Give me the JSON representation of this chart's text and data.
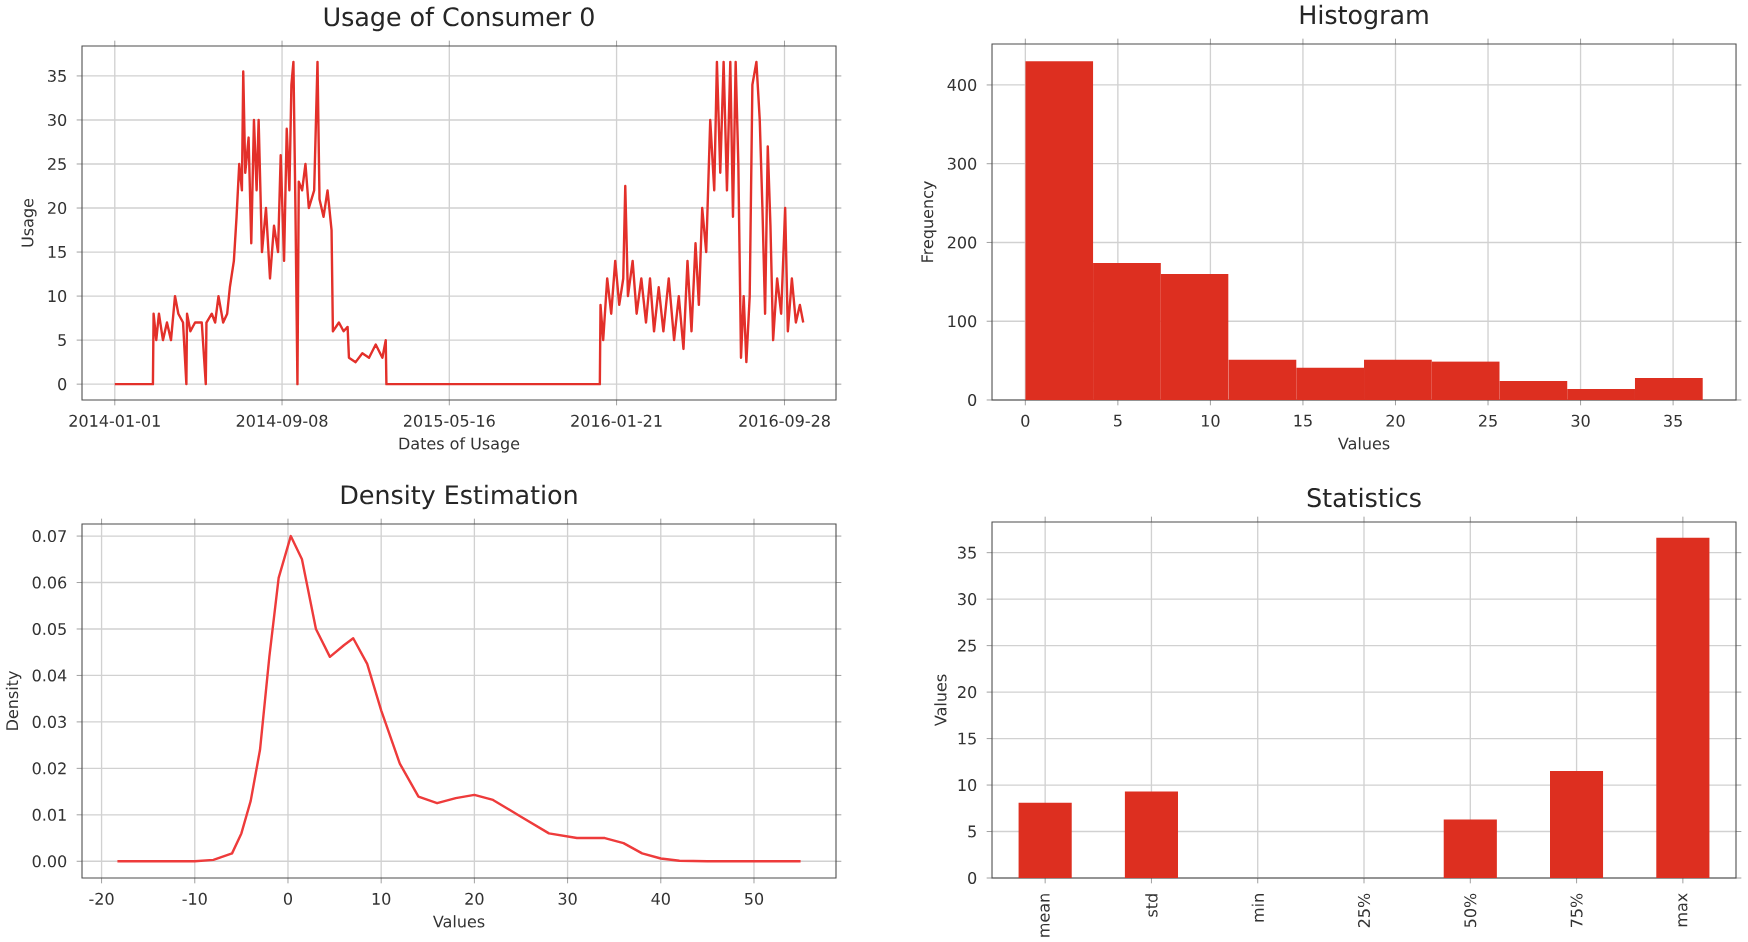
{
  "chart_data": [
    {
      "type": "line",
      "title": "Usage of Consumer 0",
      "xlabel": "Dates of Usage",
      "ylabel": "Usage",
      "color": "#e3302a",
      "grid": true,
      "x": [
        "2014-01-01",
        "2014-02-27",
        "2014-02-28",
        "2014-03-04",
        "2014-03-08",
        "2014-03-14",
        "2014-03-20",
        "2014-03-26",
        "2014-04-01",
        "2014-04-06",
        "2014-04-13",
        "2014-04-18",
        "2014-04-19",
        "2014-04-24",
        "2014-05-01",
        "2014-05-11",
        "2014-05-17",
        "2014-05-18",
        "2014-05-26",
        "2014-05-31",
        "2014-06-05",
        "2014-06-12",
        "2014-06-18",
        "2014-06-22",
        "2014-06-28",
        "2014-07-02",
        "2014-07-06",
        "2014-07-10",
        "2014-07-12",
        "2014-07-15",
        "2014-07-20",
        "2014-07-24",
        "2014-07-28",
        "2014-08-01",
        "2014-08-04",
        "2014-08-09",
        "2014-08-15",
        "2014-08-21",
        "2014-08-27",
        "2014-09-02",
        "2014-09-06",
        "2014-09-11",
        "2014-09-15",
        "2014-09-19",
        "2014-09-22",
        "2014-09-25",
        "2014-09-28",
        "2014-10-01",
        "2014-10-03",
        "2014-10-08",
        "2014-10-13",
        "2014-10-18",
        "2014-10-26",
        "2014-10-31",
        "2014-11-03",
        "2014-11-09",
        "2014-11-15",
        "2014-11-21",
        "2014-11-23",
        "2014-12-02",
        "2014-12-09",
        "2014-12-15",
        "2014-12-17",
        "2014-12-27",
        "2015-01-06",
        "2015-01-16",
        "2015-01-26",
        "2015-02-05",
        "2015-02-10",
        "2015-02-11",
        "2015-12-27",
        "2015-12-28",
        "2016-01-01",
        "2016-01-07",
        "2016-01-13",
        "2016-01-19",
        "2016-01-25",
        "2016-01-31",
        "2016-02-03",
        "2016-02-07",
        "2016-02-14",
        "2016-02-20",
        "2016-02-27",
        "2016-03-05",
        "2016-03-11",
        "2016-03-17",
        "2016-03-24",
        "2016-03-31",
        "2016-04-08",
        "2016-04-16",
        "2016-04-23",
        "2016-04-30",
        "2016-05-06",
        "2016-05-12",
        "2016-05-18",
        "2016-05-23",
        "2016-05-28",
        "2016-06-03",
        "2016-06-09",
        "2016-06-15",
        "2016-06-19",
        "2016-06-24",
        "2016-06-29",
        "2016-07-04",
        "2016-07-09",
        "2016-07-13",
        "2016-07-17",
        "2016-07-21",
        "2016-07-25",
        "2016-07-29",
        "2016-08-02",
        "2016-08-07",
        "2016-08-11",
        "2016-08-17",
        "2016-08-22",
        "2016-08-26",
        "2016-08-30",
        "2016-09-03",
        "2016-09-07",
        "2016-09-11",
        "2016-09-17",
        "2016-09-23",
        "2016-09-29",
        "2016-10-03",
        "2016-10-09",
        "2016-10-15",
        "2016-10-21",
        "2016-10-26"
      ],
      "values": [
        0,
        0,
        8,
        5,
        8,
        5,
        7,
        5,
        10,
        8,
        7,
        0,
        8,
        6,
        7,
        7,
        0,
        7,
        8,
        7,
        10,
        7,
        8,
        11,
        14,
        19,
        25,
        22,
        35.5,
        24,
        28,
        16,
        30,
        22,
        30,
        15,
        20,
        12,
        18,
        15,
        26,
        14,
        29,
        22,
        34,
        36.6,
        20,
        0,
        23,
        22,
        25,
        20,
        22,
        36.6,
        21,
        19,
        22,
        17.5,
        6,
        7,
        6,
        6.5,
        3,
        2.5,
        3.5,
        3,
        4.5,
        3,
        5,
        0,
        0,
        9,
        5,
        12,
        8,
        14,
        9,
        12,
        22.5,
        10,
        14,
        8,
        12,
        7,
        12,
        6,
        11,
        6,
        12,
        5,
        10,
        4,
        14,
        6,
        16,
        9,
        20,
        15,
        30,
        22,
        36.6,
        24,
        36.6,
        22,
        36.6,
        19,
        36.6,
        25,
        3,
        10,
        2.5,
        10,
        34,
        36.6,
        30,
        20,
        8,
        27,
        18,
        5,
        12,
        8,
        20,
        6,
        12,
        7,
        9,
        7
      ],
      "xlim": [
        "2013-11-13",
        "2016-12-14"
      ],
      "xticks": [
        "2014-01-01",
        "2014-09-08",
        "2015-05-16",
        "2016-01-21",
        "2016-09-28"
      ],
      "ylim": [
        -1.8,
        38.4
      ],
      "yticks": [
        0,
        5,
        10,
        15,
        20,
        25,
        30,
        35
      ]
    },
    {
      "type": "histogram",
      "title": "Histogram",
      "xlabel": "Values",
      "ylabel": "Frequency",
      "color": "#dd2f20",
      "grid": true,
      "bins": [
        0,
        3.66,
        7.32,
        10.98,
        14.64,
        18.3,
        21.96,
        25.62,
        29.28,
        32.94,
        36.6
      ],
      "values": [
        430,
        174,
        160,
        51,
        41,
        51,
        49,
        24,
        14,
        28
      ],
      "xlim": [
        -1.8,
        38.4
      ],
      "xticks": [
        0,
        5,
        10,
        15,
        20,
        25,
        30,
        35
      ],
      "ylim": [
        0,
        452
      ],
      "yticks": [
        0,
        100,
        200,
        300,
        400
      ]
    },
    {
      "type": "line",
      "title": "Density Estimation",
      "xlabel": "Values",
      "ylabel": "Density",
      "color": "#ee3b3b",
      "grid": true,
      "x": [
        -18.3,
        -10,
        -8,
        -6,
        -5,
        -4,
        -3,
        -2,
        -1,
        0.3,
        1.5,
        3,
        4.5,
        6,
        7,
        8.5,
        10,
        12,
        14,
        16,
        18,
        20,
        22,
        25,
        28,
        31,
        34,
        36,
        38,
        40,
        42,
        45,
        55
      ],
      "values": [
        0,
        0,
        0.0003,
        0.0017,
        0.006,
        0.013,
        0.024,
        0.044,
        0.061,
        0.07,
        0.065,
        0.05,
        0.044,
        0.0465,
        0.048,
        0.0425,
        0.0325,
        0.021,
        0.0139,
        0.0125,
        0.0136,
        0.0143,
        0.0132,
        0.0096,
        0.006,
        0.005,
        0.005,
        0.0039,
        0.0017,
        0.0006,
        0.0001,
        0,
        0
      ],
      "xlim": [
        -22.1,
        58.8
      ],
      "xticks": [
        -20,
        -10,
        0,
        10,
        20,
        30,
        40,
        50
      ],
      "ylim": [
        -0.0036,
        0.0726
      ],
      "yticks": [
        {
          "value": 0,
          "label": "0.00"
        },
        0.01,
        0.02,
        0.03,
        0.04,
        0.05,
        0.06,
        0.07
      ]
    },
    {
      "type": "bar",
      "title": "Statistics",
      "ylabel": "Values",
      "color": "#dd2f20",
      "grid": true,
      "categories": [
        "mean",
        "std",
        "min",
        "25%",
        "50%",
        "75%",
        "max"
      ],
      "values": [
        8.1,
        9.3,
        0,
        0,
        6.3,
        11.5,
        36.6
      ],
      "ylim": [
        0,
        38.3
      ],
      "yticks": [
        0,
        5,
        10,
        15,
        20,
        25,
        30,
        35
      ]
    }
  ]
}
